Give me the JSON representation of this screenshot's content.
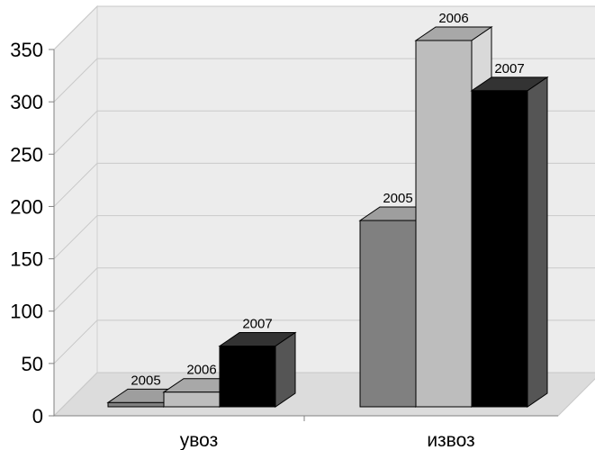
{
  "chart_data": {
    "type": "bar",
    "categories": [
      "увоз",
      "извоз"
    ],
    "series": [
      {
        "name": "2005",
        "values": [
          4,
          178
        ],
        "color": "#808080",
        "top_color": "#9e9e9e",
        "side_color": "#5c5c5c"
      },
      {
        "name": "2006",
        "values": [
          14,
          350
        ],
        "color": "#bdbdbd",
        "top_color": "#a8a8a8",
        "side_color": "#d9d9d9"
      },
      {
        "name": "2007",
        "values": [
          58,
          302
        ],
        "color": "#000000",
        "top_color": "#333333",
        "side_color": "#555555"
      }
    ],
    "data_labels": [
      "2005",
      "2006",
      "2007"
    ],
    "yticks": [
      "0",
      "50",
      "100",
      "150",
      "200",
      "250",
      "300",
      "350"
    ],
    "ylim": [
      0,
      350
    ],
    "grid": true,
    "style": "3d-clustered-column"
  }
}
